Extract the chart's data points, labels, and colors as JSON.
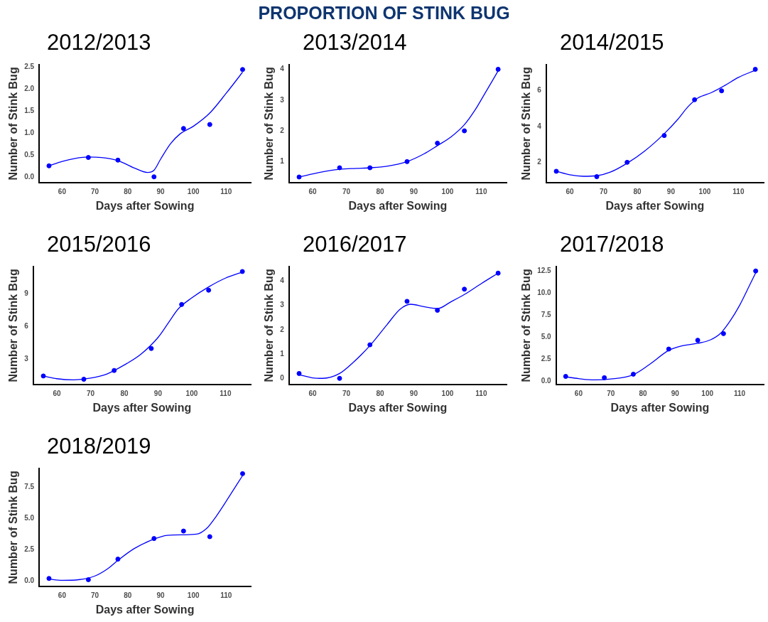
{
  "chart_data": [
    {
      "type": "scatter",
      "title": "2012/2013",
      "annotations": [
        "PROPORTION OF STINK BUG"
      ],
      "xlabel": "Days after Sowing",
      "ylabel": "Number of Stink Bug",
      "xlim": [
        53,
        117.5
      ],
      "xticks": [
        60,
        70,
        80,
        90,
        100,
        110
      ],
      "ylim": [
        -0.13,
        2.55
      ],
      "yticks": [
        {
          "value": 0,
          "label": "0.0"
        },
        {
          "value": 0.5,
          "label": "0.5"
        },
        {
          "value": 1,
          "label": "1.0"
        },
        {
          "value": 1.5,
          "label": "1.5"
        },
        {
          "value": 2,
          "label": "2.0"
        },
        {
          "value": 2.5,
          "label": "2.5"
        }
      ],
      "series": [
        {
          "type": "scatter",
          "marker": "circle",
          "color": "#0000ff",
          "x": [
            56,
            68,
            77,
            88,
            97,
            105,
            115
          ],
          "values": [
            0.25,
            0.44,
            0.38,
            0.0,
            1.1,
            1.19,
            2.44
          ]
        },
        {
          "type": "line",
          "color": "#0000ff",
          "x": [
            56,
            60,
            64,
            68,
            72,
            77,
            82,
            86,
            88,
            90,
            93,
            96,
            100,
            105,
            110,
            115
          ],
          "values": [
            0.25,
            0.35,
            0.42,
            0.45,
            0.44,
            0.37,
            0.2,
            0.1,
            0.15,
            0.4,
            0.75,
            0.98,
            1.15,
            1.45,
            1.9,
            2.38
          ]
        }
      ]
    },
    {
      "type": "scatter",
      "title": "2013/2014",
      "xlabel": "Days after Sowing",
      "ylabel": "Number of Stink Bug",
      "xlim": [
        53,
        117.5
      ],
      "xticks": [
        60,
        70,
        80,
        90,
        100,
        110
      ],
      "ylim": [
        0.32,
        4.15
      ],
      "yticks": [
        1,
        2,
        3,
        4
      ],
      "series": [
        {
          "type": "scatter",
          "marker": "circle",
          "color": "#0000ff",
          "x": [
            56,
            68,
            77,
            88,
            97,
            105,
            115
          ],
          "values": [
            0.5,
            0.8,
            0.8,
            1.0,
            1.6,
            2.0,
            4.0
          ]
        },
        {
          "type": "line",
          "color": "#0000ff",
          "x": [
            56,
            62,
            68,
            73,
            77,
            82,
            88,
            93,
            97,
            101,
            105,
            108,
            111,
            115
          ],
          "values": [
            0.5,
            0.65,
            0.75,
            0.78,
            0.8,
            0.85,
            1.0,
            1.25,
            1.52,
            1.8,
            2.2,
            2.65,
            3.2,
            3.95
          ]
        }
      ]
    },
    {
      "type": "scatter",
      "title": "2014/2015",
      "xlabel": "Days after Sowing",
      "ylabel": "Number of Stink Bug",
      "xlim": [
        53,
        117.5
      ],
      "xticks": [
        60,
        70,
        80,
        90,
        100,
        110
      ],
      "ylim": [
        0.87,
        7.46
      ],
      "yticks": [
        2,
        4,
        6
      ],
      "series": [
        {
          "type": "scatter",
          "marker": "circle",
          "color": "#0000ff",
          "x": [
            56,
            68,
            77,
            88,
            97,
            105,
            115
          ],
          "values": [
            1.5,
            1.2,
            2.0,
            3.5,
            5.5,
            6.0,
            7.2
          ]
        },
        {
          "type": "line",
          "color": "#0000ff",
          "x": [
            56,
            60,
            64,
            68,
            72,
            77,
            82,
            88,
            92,
            95,
            98,
            102,
            106,
            110,
            115
          ],
          "values": [
            1.5,
            1.3,
            1.22,
            1.25,
            1.45,
            1.95,
            2.6,
            3.6,
            4.4,
            5.1,
            5.6,
            5.9,
            6.3,
            6.75,
            7.15
          ]
        }
      ]
    },
    {
      "type": "scatter",
      "title": "2015/2016",
      "xlabel": "Days after Sowing",
      "ylabel": "Number of Stink Bug",
      "xlim": [
        53,
        117.5
      ],
      "xticks": [
        60,
        70,
        80,
        90,
        100,
        110
      ],
      "ylim": [
        0.73,
        11.45
      ],
      "yticks": [
        3,
        6,
        9
      ],
      "series": [
        {
          "type": "scatter",
          "marker": "circle",
          "color": "#0000ff",
          "x": [
            56,
            68,
            77,
            88,
            97,
            105,
            115
          ],
          "values": [
            1.5,
            1.2,
            2.0,
            4.0,
            8.0,
            9.3,
            11.0
          ]
        },
        {
          "type": "line",
          "color": "#0000ff",
          "x": [
            56,
            60,
            65,
            70,
            75,
            80,
            85,
            90,
            93,
            96,
            100,
            105,
            110,
            115
          ],
          "values": [
            1.5,
            1.25,
            1.15,
            1.3,
            1.7,
            2.5,
            3.5,
            5.0,
            6.3,
            7.6,
            8.6,
            9.6,
            10.4,
            10.95
          ]
        }
      ]
    },
    {
      "type": "scatter",
      "title": "2016/2017",
      "xlabel": "Days after Sowing",
      "ylabel": "Number of Stink Bug",
      "xlim": [
        53,
        117.5
      ],
      "xticks": [
        60,
        70,
        80,
        90,
        100,
        110
      ],
      "ylim": [
        -0.25,
        4.6
      ],
      "yticks": [
        0,
        1,
        2,
        3,
        4
      ],
      "series": [
        {
          "type": "scatter",
          "marker": "circle",
          "color": "#0000ff",
          "x": [
            56,
            68,
            77,
            88,
            97,
            105,
            115
          ],
          "values": [
            0.2,
            0.0,
            1.38,
            3.17,
            2.8,
            3.67,
            4.33
          ]
        },
        {
          "type": "line",
          "color": "#0000ff",
          "x": [
            56,
            60,
            63,
            68,
            72,
            77,
            82,
            86,
            89,
            93,
            97,
            101,
            105,
            110,
            115
          ],
          "values": [
            0.15,
            0.02,
            0.0,
            0.2,
            0.65,
            1.35,
            2.2,
            2.85,
            3.05,
            2.95,
            2.87,
            3.15,
            3.45,
            3.9,
            4.33
          ]
        }
      ]
    },
    {
      "type": "scatter",
      "title": "2017/2018",
      "xlabel": "Days after Sowing",
      "ylabel": "Number of Stink Bug",
      "xlim": [
        53,
        117.5
      ],
      "xticks": [
        60,
        70,
        80,
        90,
        100,
        110
      ],
      "ylim": [
        -0.36,
        13.0
      ],
      "yticks": [
        {
          "value": 0,
          "label": "0.0"
        },
        {
          "value": 2.5,
          "label": "2.5"
        },
        {
          "value": 5,
          "label": "5.0"
        },
        {
          "value": 7.5,
          "label": "7.5"
        },
        {
          "value": 10,
          "label": "10.0"
        },
        {
          "value": 12.5,
          "label": "12.5"
        }
      ],
      "series": [
        {
          "type": "scatter",
          "marker": "circle",
          "color": "#0000ff",
          "x": [
            56,
            68,
            77,
            88,
            97,
            105,
            115
          ],
          "values": [
            0.55,
            0.4,
            0.8,
            3.65,
            4.65,
            5.4,
            12.5
          ]
        },
        {
          "type": "line",
          "color": "#0000ff",
          "x": [
            56,
            60,
            65,
            70,
            77,
            82,
            88,
            92,
            97,
            101,
            104,
            107,
            110,
            113,
            115
          ],
          "values": [
            0.5,
            0.3,
            0.15,
            0.25,
            0.75,
            1.9,
            3.5,
            4.0,
            4.3,
            4.7,
            5.4,
            6.8,
            8.6,
            10.8,
            12.3
          ]
        }
      ]
    },
    {
      "type": "scatter",
      "title": "2018/2019",
      "xlabel": "Days after Sowing",
      "ylabel": "Number of Stink Bug",
      "xlim": [
        53,
        117.5
      ],
      "xticks": [
        60,
        70,
        80,
        90,
        100,
        110
      ],
      "ylim": [
        -0.43,
        9.02
      ],
      "yticks": [
        {
          "value": 0,
          "label": "0.0"
        },
        {
          "value": 2.5,
          "label": "2.5"
        },
        {
          "value": 5,
          "label": "5.0"
        },
        {
          "value": 7.5,
          "label": "7.5"
        }
      ],
      "series": [
        {
          "type": "scatter",
          "marker": "circle",
          "color": "#0000ff",
          "x": [
            56,
            68,
            77,
            88,
            97,
            105,
            115
          ],
          "values": [
            0.2,
            0.1,
            1.75,
            3.4,
            4.0,
            3.55,
            8.6
          ]
        },
        {
          "type": "line",
          "color": "#0000ff",
          "x": [
            56,
            60,
            65,
            70,
            74,
            77,
            82,
            88,
            92,
            97,
            101,
            104,
            107,
            111,
            115
          ],
          "values": [
            0.15,
            0.05,
            0.1,
            0.4,
            1.0,
            1.65,
            2.6,
            3.35,
            3.65,
            3.7,
            3.75,
            4.2,
            5.2,
            6.8,
            8.45
          ]
        }
      ]
    }
  ]
}
